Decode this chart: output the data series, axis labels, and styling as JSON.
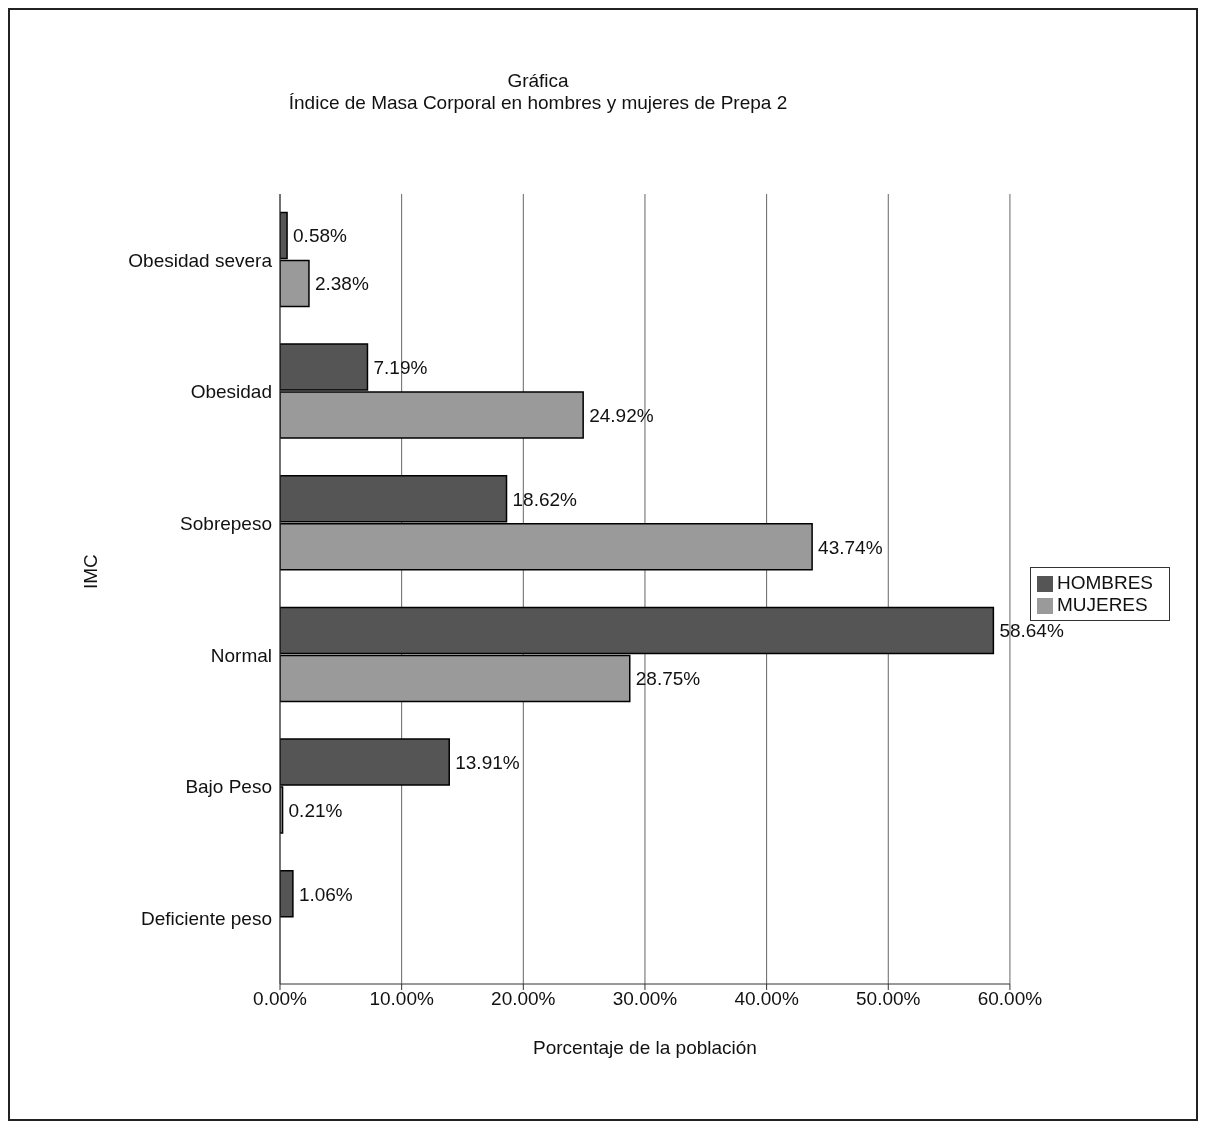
{
  "chart_data": {
    "type": "bar",
    "orientation": "horizontal",
    "title": "Gráfica",
    "subtitle": "Índice de Masa Corporal  en hombres y mujeres de Prepa 2",
    "xlabel": "Porcentaje de la población",
    "ylabel": "IMC",
    "categories": [
      "Obesidad severa",
      "Obesidad",
      "Sobrepeso",
      "Normal",
      "Bajo Peso",
      "Deficiente peso"
    ],
    "series": [
      {
        "name": "HOMBRES",
        "color": "#555555",
        "values": [
          0.58,
          7.19,
          18.62,
          58.64,
          13.91,
          1.06
        ],
        "value_labels": [
          "0.58%",
          "7.19%",
          "18.62%",
          "58.64%",
          "13.91%",
          "1.06%"
        ]
      },
      {
        "name": "MUJERES",
        "color": "#9a9a9a",
        "values": [
          2.38,
          24.92,
          43.74,
          28.75,
          0.21,
          null
        ],
        "value_labels": [
          "2.38%",
          "24.92%",
          "43.74%",
          "28.75%",
          "0.21%",
          null
        ]
      }
    ],
    "xlim": [
      0,
      60
    ],
    "xticks": [
      {
        "value": 0,
        "label": "0.00%"
      },
      {
        "value": 10,
        "label": "10.00%"
      },
      {
        "value": 20,
        "label": "20.00%"
      },
      {
        "value": 30,
        "label": "30.00%"
      },
      {
        "value": 40,
        "label": "40.00%"
      },
      {
        "value": 50,
        "label": "50.00%"
      },
      {
        "value": 60,
        "label": "60.00%"
      }
    ],
    "grid": "x",
    "legend": "right"
  }
}
